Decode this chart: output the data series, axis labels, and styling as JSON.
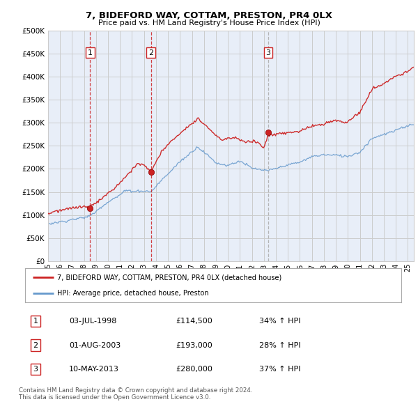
{
  "title": "7, BIDEFORD WAY, COTTAM, PRESTON, PR4 0LX",
  "subtitle": "Price paid vs. HM Land Registry's House Price Index (HPI)",
  "ytick_vals": [
    0,
    50000,
    100000,
    150000,
    200000,
    250000,
    300000,
    350000,
    400000,
    450000,
    500000
  ],
  "xmin": 1995,
  "xmax": 2025.5,
  "ymin": 0,
  "ymax": 500000,
  "purchases": [
    {
      "year": 1998.5,
      "price": 114500,
      "label": "1",
      "vline_style": "red_dashed"
    },
    {
      "year": 2003.58,
      "price": 193000,
      "label": "2",
      "vline_style": "red_dashed"
    },
    {
      "year": 2013.36,
      "price": 280000,
      "label": "3",
      "vline_style": "grey_dashed"
    }
  ],
  "purchase_table": [
    {
      "num": "1",
      "date": "03-JUL-1998",
      "price": "£114,500",
      "change": "34% ↑ HPI"
    },
    {
      "num": "2",
      "date": "01-AUG-2003",
      "price": "£193,000",
      "change": "28% ↑ HPI"
    },
    {
      "num": "3",
      "date": "10-MAY-2013",
      "price": "£280,000",
      "change": "37% ↑ HPI"
    }
  ],
  "legend_line1": "7, BIDEFORD WAY, COTTAM, PRESTON, PR4 0LX (detached house)",
  "legend_line2": "HPI: Average price, detached house, Preston",
  "footer": "Contains HM Land Registry data © Crown copyright and database right 2024.\nThis data is licensed under the Open Government Licence v3.0.",
  "line_color_red": "#cc2222",
  "line_color_blue": "#6699cc",
  "vline_color_red": "#cc2222",
  "vline_color_grey": "#aaaaaa",
  "grid_color": "#cccccc",
  "bg_color": "#ffffff",
  "plot_bg_color": "#e8eef8",
  "label_box_color_red": "#cc2222"
}
